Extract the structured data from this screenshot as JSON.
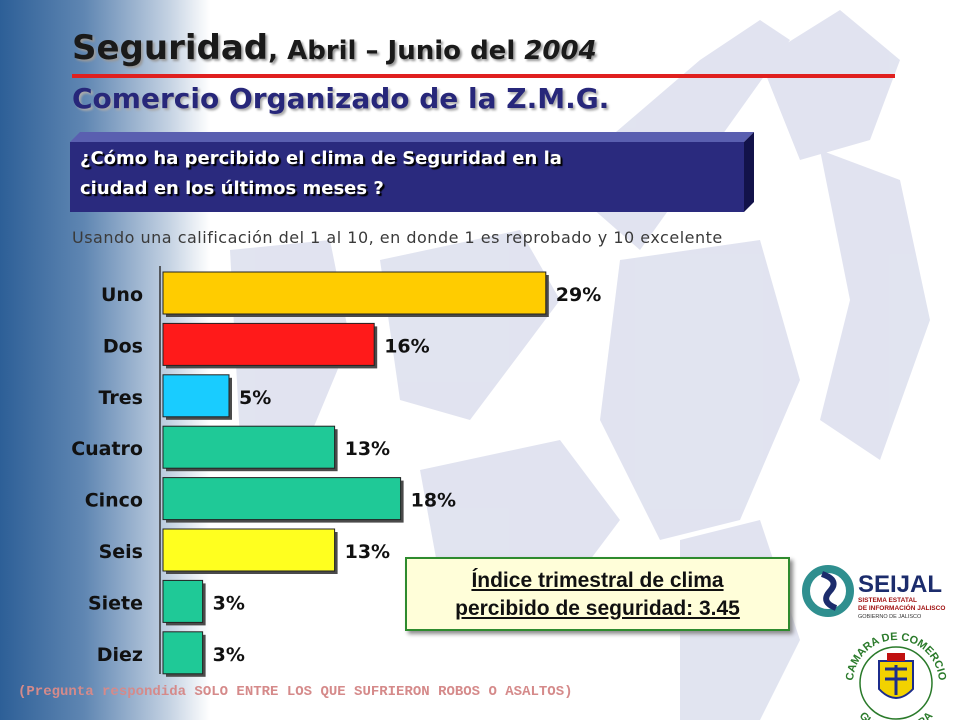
{
  "title": {
    "part1": "Seguridad",
    "part2": ", Abril – Junio del ",
    "part3": "2004"
  },
  "subtitle": "Comercio Organizado de la Z.M.G.",
  "question": {
    "line1": "¿Cómo ha percibido el clima de Seguridad en la",
    "line2": "ciudad en los últimos meses ?"
  },
  "note": "Usando una calificación del 1 al 10, en donde 1 es reprobado y 10 excelente",
  "chart_data": {
    "type": "bar",
    "orientation": "horizontal",
    "categories": [
      "Uno",
      "Dos",
      "Tres",
      "Cuatro",
      "Cinco",
      "Seis",
      "Siete",
      "Diez"
    ],
    "values": [
      29,
      16,
      5,
      13,
      18,
      13,
      3,
      3
    ],
    "labels": [
      "29%",
      "16%",
      "5%",
      "13%",
      "18%",
      "13%",
      "3%",
      "3%"
    ],
    "colors": [
      "#ffcc00",
      "#ff1a1a",
      "#19ccff",
      "#1fc997",
      "#1fc997",
      "#ffff1f",
      "#1fc997",
      "#1fc997"
    ],
    "grid": false
  },
  "index_box": {
    "line1": "Índice trimestral de clima",
    "line2": "percibido de seguridad: 3.45"
  },
  "logos": {
    "seijal": {
      "name": "SEIJAL",
      "line1": "SISTEMA ESTATAL",
      "line2": "DE INFORMACIÓN JALISCO",
      "line3": "GOBIERNO DE JALISCO"
    },
    "camara": {
      "top": "CAMARA DE COMERCIO",
      "bottom": "GUADALAJARA"
    }
  },
  "footer": "(Pregunta respondida SOLO ENTRE LOS QUE SUFRIERON ROBOS O ASALTOS)"
}
